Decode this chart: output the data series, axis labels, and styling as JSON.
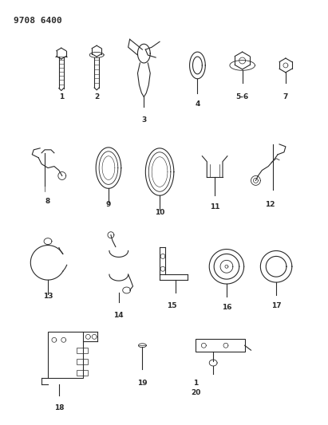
{
  "title": "9708 6400",
  "bg_color": "#ffffff",
  "line_color": "#2a2a2a",
  "title_fontsize": 8,
  "label_fontsize": 6.5,
  "fig_w": 4.11,
  "fig_h": 5.33,
  "dpi": 100
}
